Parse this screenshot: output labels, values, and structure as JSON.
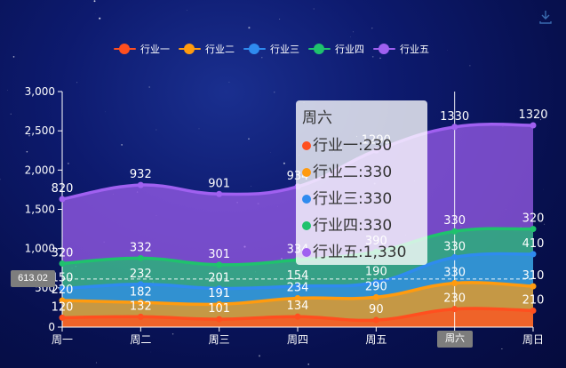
{
  "toolbox": {
    "save_icon": "download-icon"
  },
  "chart_data": {
    "type": "area",
    "stacked": true,
    "smooth": true,
    "categories": [
      "周一",
      "周二",
      "周三",
      "周四",
      "周五",
      "周六",
      "周日"
    ],
    "series": [
      {
        "name": "行业一",
        "color": "#ff4f1f",
        "values": [
          120,
          132,
          101,
          134,
          90,
          230,
          210
        ]
      },
      {
        "name": "行业二",
        "color": "#ff9b0f",
        "values": [
          220,
          182,
          191,
          234,
          290,
          330,
          310
        ]
      },
      {
        "name": "行业三",
        "color": "#2f8bef",
        "values": [
          150,
          232,
          201,
          154,
          190,
          330,
          410
        ]
      },
      {
        "name": "行业四",
        "color": "#1fc26d",
        "values": [
          320,
          332,
          301,
          334,
          390,
          330,
          320
        ]
      },
      {
        "name": "行业五",
        "color": "#a060f0",
        "values": [
          820,
          932,
          901,
          934,
          1290,
          1330,
          1320
        ]
      }
    ],
    "ylim": [
      0,
      3000
    ],
    "yticks": [
      "0",
      "500",
      "1,000",
      "1,500",
      "2,000",
      "2,500",
      "3,000"
    ],
    "legend_position": "top",
    "grid": false
  },
  "tooltip": {
    "title": "周六",
    "rows": [
      {
        "label": "行业一",
        "value": "230"
      },
      {
        "label": "行业二",
        "value": "330"
      },
      {
        "label": "行业三",
        "value": "330"
      },
      {
        "label": "行业四",
        "value": "330"
      },
      {
        "label": "行业五",
        "value": "1,330"
      }
    ]
  },
  "axis_pointer": {
    "y_value": "613.02",
    "x_value": "周六"
  }
}
